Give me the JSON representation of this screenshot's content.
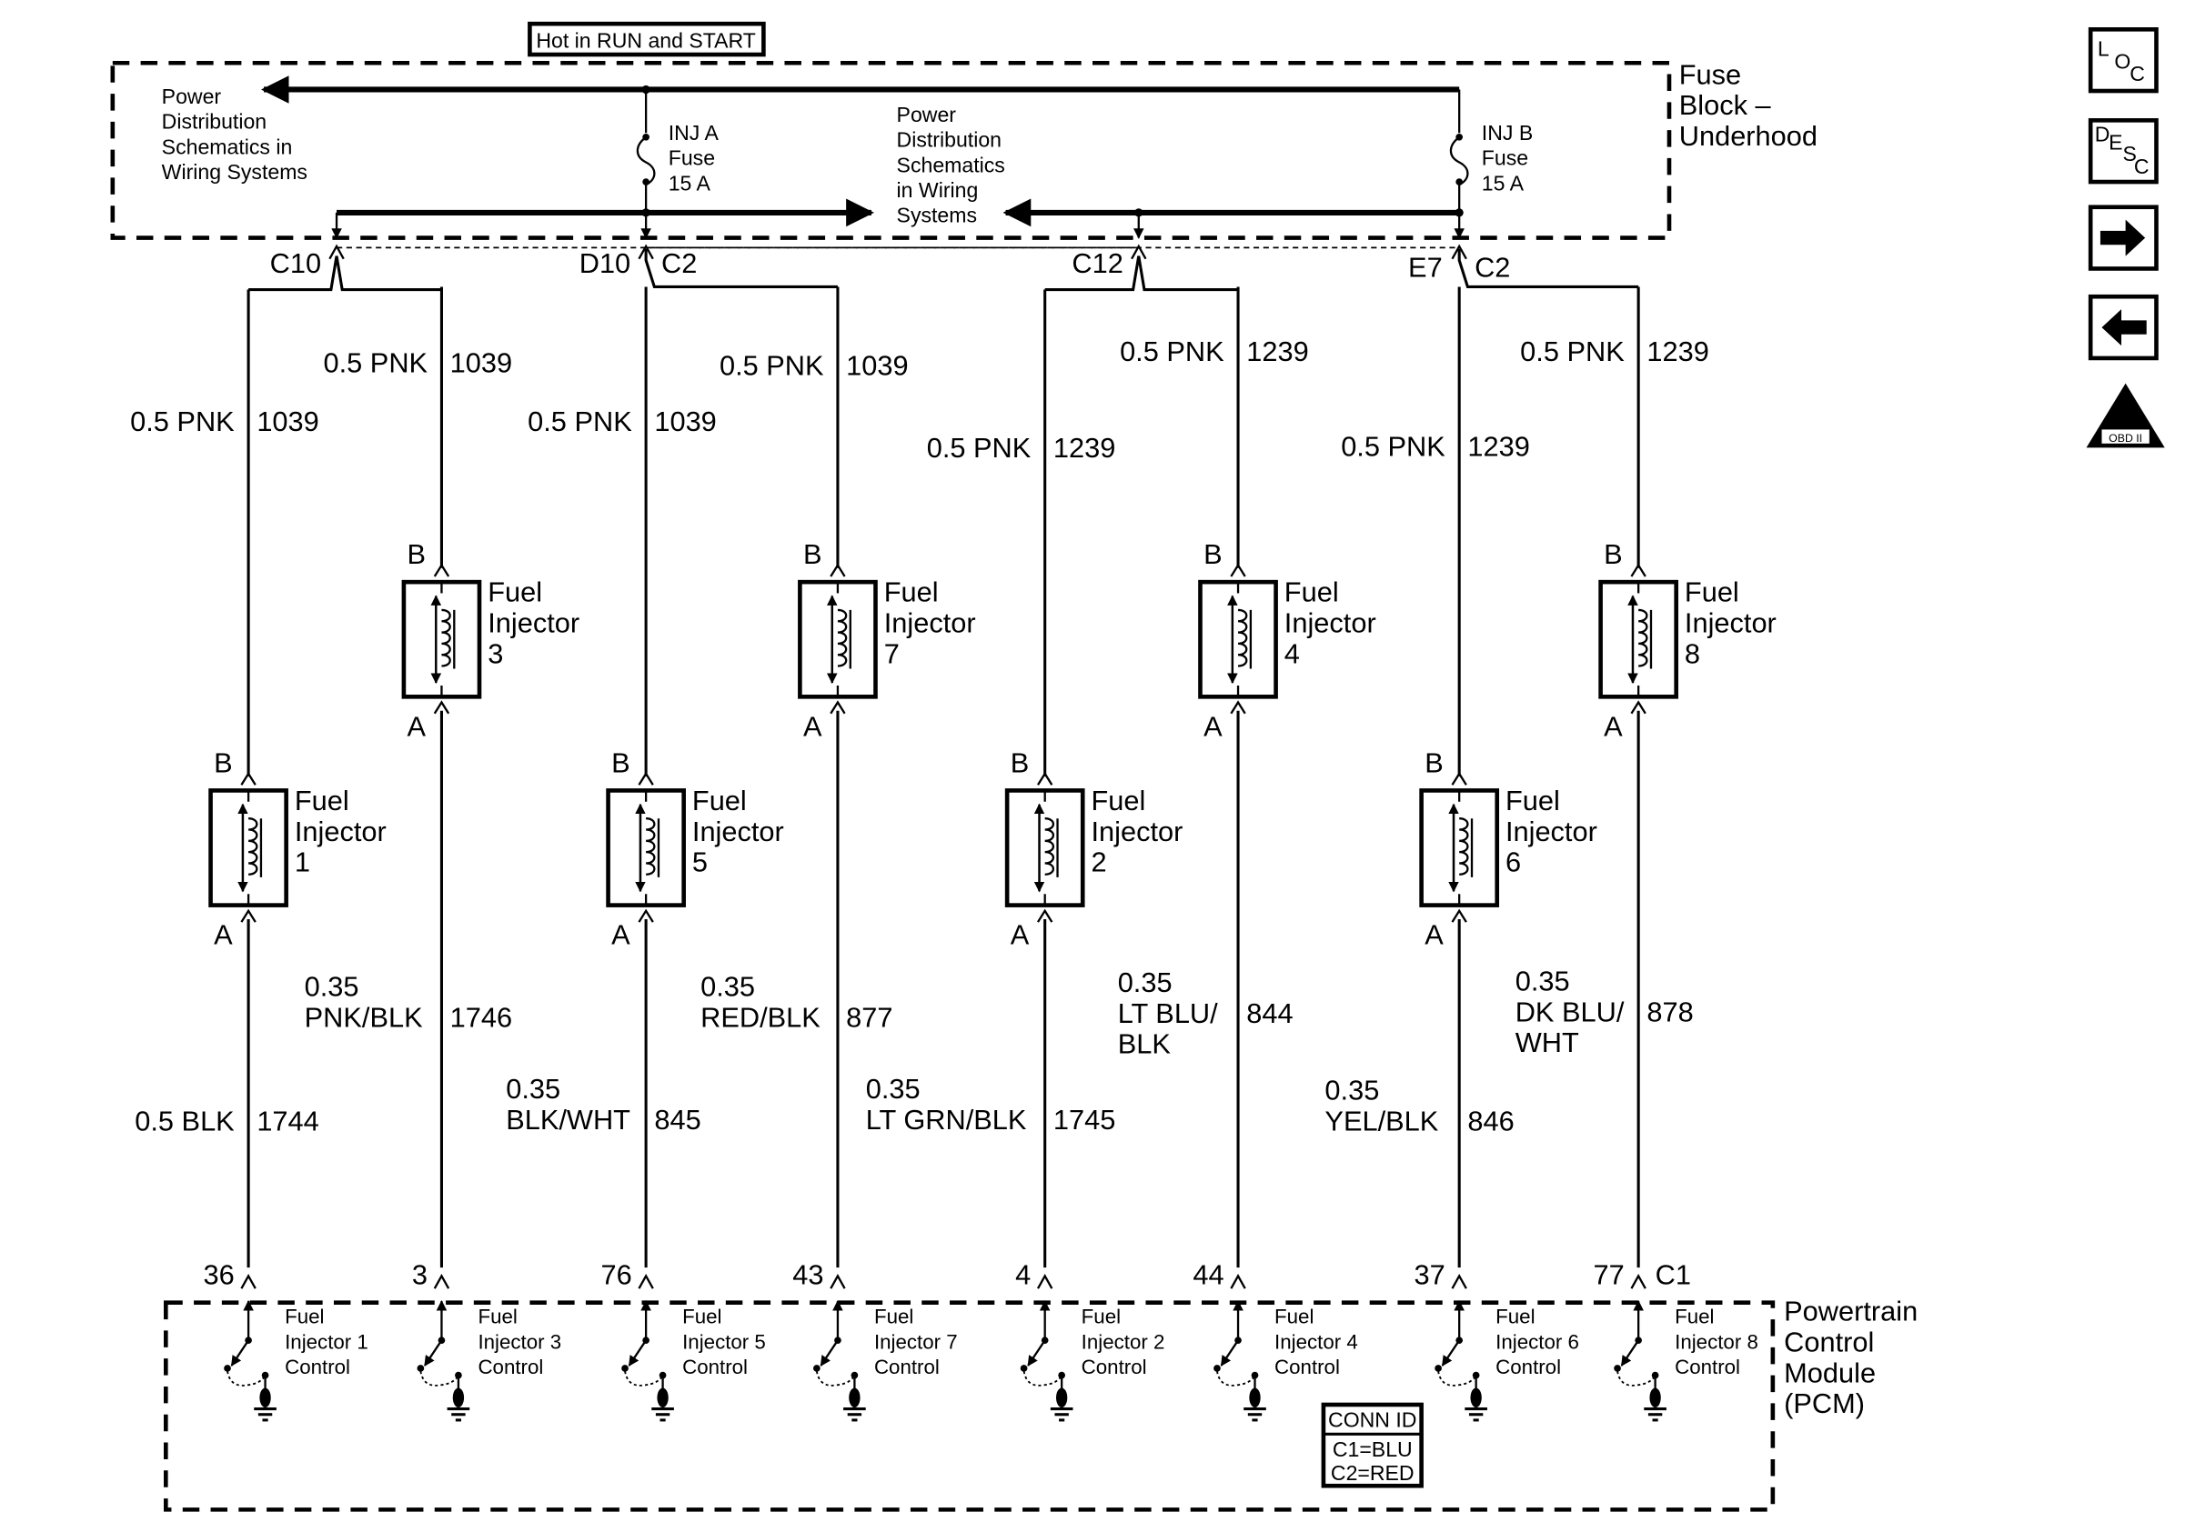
{
  "header": {
    "power_label": "Hot in RUN and START",
    "fuse_block_label": [
      "Fuse",
      "Block –",
      "Underhood"
    ],
    "left_ref": [
      "Power",
      "Distribution",
      "Schematics in",
      "Wiring Systems"
    ],
    "center_ref": [
      "Power",
      "Distribution",
      "Schematics",
      "in Wiring",
      "Systems"
    ],
    "fuses": [
      {
        "lines": [
          "INJ A",
          "Fuse",
          "15 A"
        ]
      },
      {
        "lines": [
          "INJ B",
          "Fuse",
          "15 A"
        ]
      }
    ]
  },
  "connectors": [
    "C10",
    "D10",
    "C2",
    "C12",
    "E7",
    "C2"
  ],
  "columns": [
    {
      "top": [
        "0.5 PNK",
        "1039"
      ],
      "bottom": [
        "0.5 BLK"
      ],
      "bottom_circuit": "1744",
      "injector": "1",
      "pin": "36"
    },
    {
      "top": [
        "0.5 PNK",
        "1039"
      ],
      "bottom": [
        "0.35",
        "PNK/BLK"
      ],
      "bottom_circuit": "1746",
      "injector": "3",
      "pin": "3"
    },
    {
      "top": [
        "0.5 PNK",
        "1039"
      ],
      "bottom": [
        "0.35",
        "BLK/WHT"
      ],
      "bottom_circuit": "845",
      "injector": "5",
      "pin": "76"
    },
    {
      "top": [
        "0.5 PNK",
        "1039"
      ],
      "bottom": [
        "0.35",
        "RED/BLK"
      ],
      "bottom_circuit": "877",
      "injector": "7",
      "pin": "43"
    },
    {
      "top": [
        "0.5 PNK",
        "1239"
      ],
      "bottom": [
        "0.35",
        "LT GRN/BLK"
      ],
      "bottom_circuit": "1745",
      "injector": "2",
      "pin": "4"
    },
    {
      "top": [
        "0.5 PNK",
        "1239"
      ],
      "bottom": [
        "0.35",
        "LT BLU/",
        "BLK"
      ],
      "bottom_circuit": "844",
      "injector": "4",
      "pin": "44"
    },
    {
      "top": [
        "0.5 PNK",
        "1239"
      ],
      "bottom": [
        "0.35",
        "YEL/BLK"
      ],
      "bottom_circuit": "846",
      "injector": "6",
      "pin": "37"
    },
    {
      "top": [
        "0.5 PNK",
        "1239"
      ],
      "bottom": [
        "0.35",
        "DK BLU/",
        "WHT"
      ],
      "bottom_circuit": "878",
      "injector": "8",
      "pin": "77"
    }
  ],
  "injector_text": {
    "line1": "Fuel",
    "line2": "Injector",
    "pin_b": "B",
    "pin_a": "A"
  },
  "pcm": {
    "connector": "C1",
    "module_label": [
      "Powertrain",
      "Control",
      "Module",
      "(PCM)"
    ],
    "drivers": [
      [
        "Fuel",
        "Injector 1",
        "Control"
      ],
      [
        "Fuel",
        "Injector 3",
        "Control"
      ],
      [
        "Fuel",
        "Injector 5",
        "Control"
      ],
      [
        "Fuel",
        "Injector 7",
        "Control"
      ],
      [
        "Fuel",
        "Injector 2",
        "Control"
      ],
      [
        "Fuel",
        "Injector 4",
        "Control"
      ],
      [
        "Fuel",
        "Injector 6",
        "Control"
      ],
      [
        "Fuel",
        "Injector 8",
        "Control"
      ]
    ],
    "conn_id": {
      "title": "CONN ID",
      "lines": [
        "C1=BLU",
        "C2=RED"
      ]
    }
  },
  "nav": {
    "loc": [
      "L",
      "O",
      "C"
    ],
    "desc": [
      "D",
      "E",
      "S",
      "C"
    ],
    "obd": [
      "II",
      "OBD II"
    ],
    "icons": [
      "location-icon",
      "description-icon",
      "next-arrow-icon",
      "previous-arrow-icon",
      "obd-ii-icon"
    ]
  }
}
